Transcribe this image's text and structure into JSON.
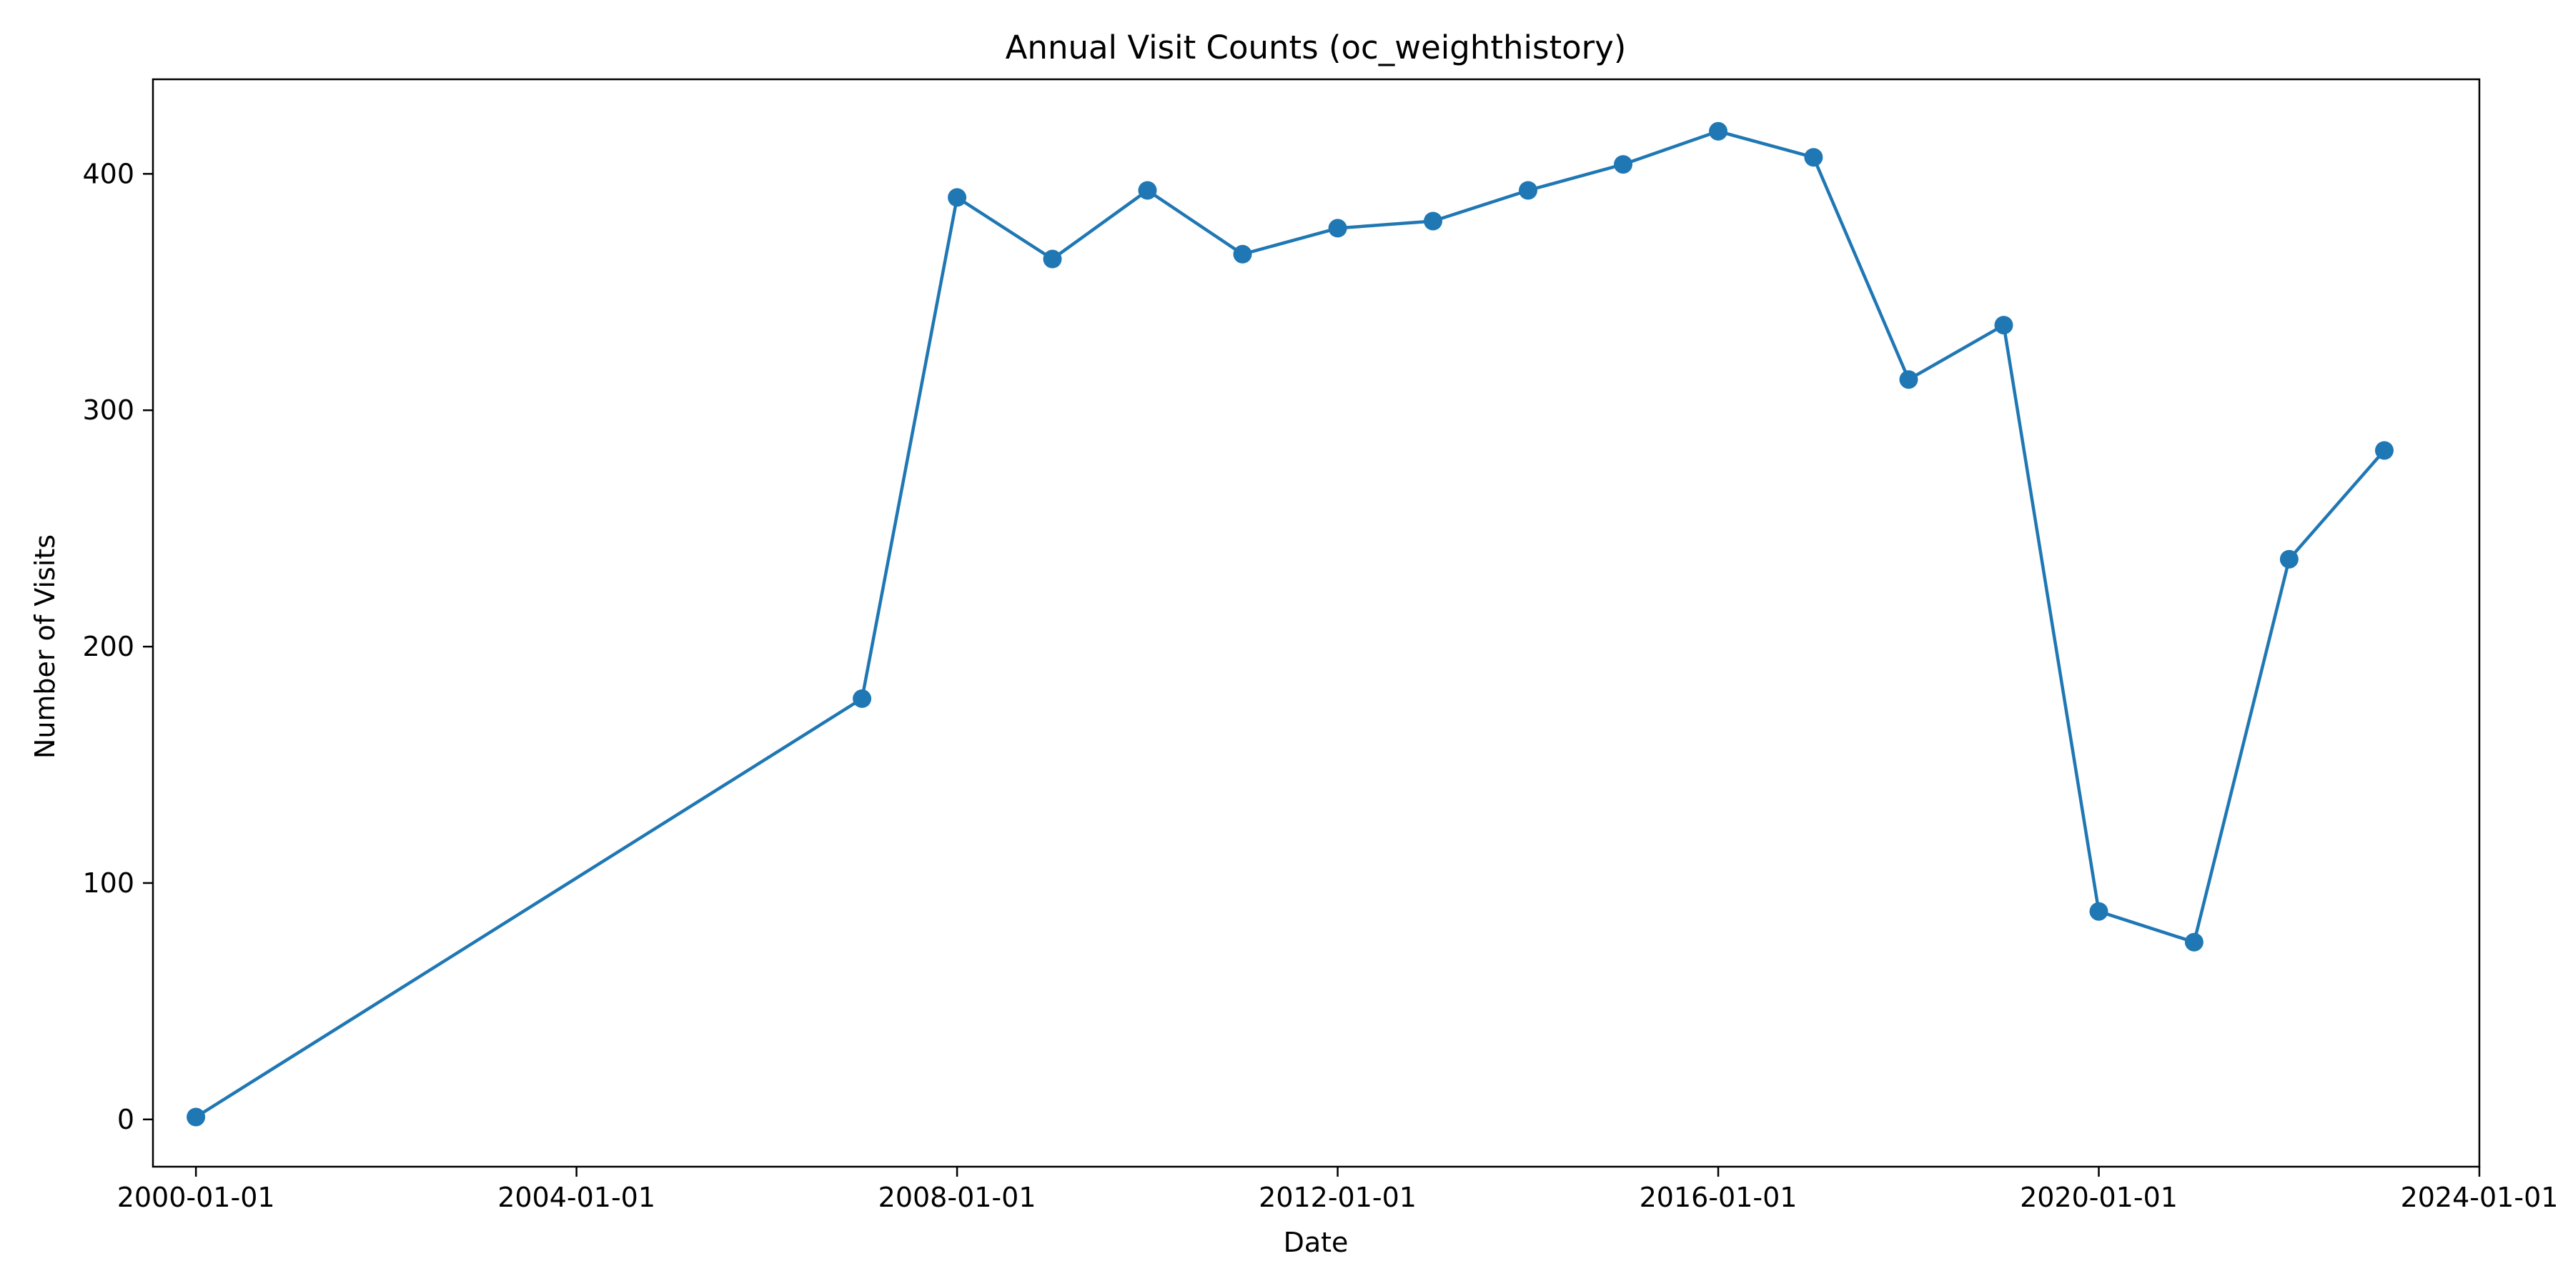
{
  "chart_data": {
    "type": "line",
    "title": "Annual Visit Counts (oc_weighthistory)",
    "xlabel": "Date",
    "ylabel": "Number of Visits",
    "x_type": "date",
    "xlim": [
      "1999-07-20",
      "2024-01-01"
    ],
    "ylim": [
      -20,
      440
    ],
    "x_ticks": [
      "2000-01-01",
      "2004-01-01",
      "2008-01-01",
      "2012-01-01",
      "2016-01-01",
      "2020-01-01",
      "2024-01-01"
    ],
    "y_ticks": [
      0,
      100,
      200,
      300,
      400
    ],
    "grid": false,
    "legend": "none",
    "series": [
      {
        "color": "#1f77b4",
        "marker": "circle",
        "x": [
          "2000-01-01",
          "2007-01-01",
          "2008-01-01",
          "2009-01-01",
          "2010-01-01",
          "2011-01-01",
          "2012-01-01",
          "2013-01-01",
          "2014-01-01",
          "2015-01-01",
          "2016-01-01",
          "2017-01-01",
          "2018-01-01",
          "2019-01-01",
          "2020-01-01",
          "2021-01-01",
          "2022-01-01",
          "2023-01-01"
        ],
        "y": [
          1,
          178,
          390,
          364,
          393,
          366,
          377,
          380,
          393,
          404,
          418,
          407,
          313,
          336,
          88,
          75,
          237,
          283
        ]
      }
    ]
  }
}
